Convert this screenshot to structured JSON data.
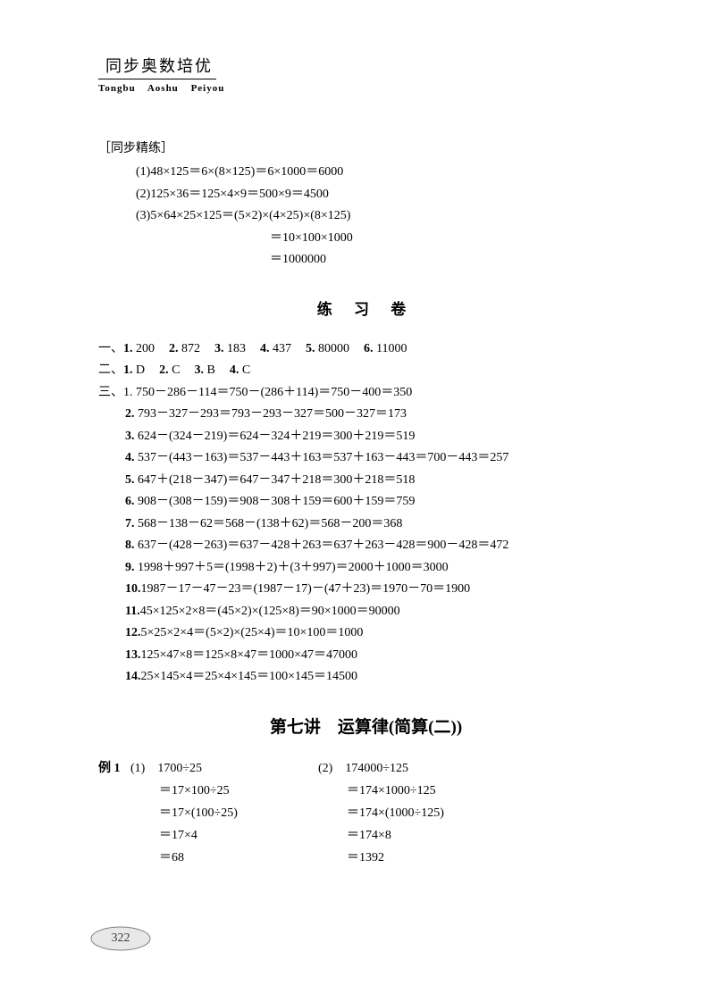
{
  "header": {
    "cn": "同步奥数培优",
    "pinyin": [
      "Tongbu",
      "Aoshu",
      "Peiyou"
    ]
  },
  "colors": {
    "text": "#000000",
    "background": "#ffffff",
    "pagenum_stroke": "#808080",
    "pagenum_fill": "#e8e8e8"
  },
  "section1": {
    "label": "［同步精练］",
    "lines": [
      "(1)48×125＝6×(8×125)＝6×1000＝6000",
      "(2)125×36＝125×4×9＝500×9＝4500",
      "(3)5×64×25×125＝(5×2)×(4×25)×(8×125)"
    ],
    "sub_lines": [
      "＝10×100×1000",
      "＝1000000"
    ]
  },
  "practice": {
    "title": "练 习 卷",
    "q1": {
      "prefix": "一、",
      "items": [
        {
          "n": "1.",
          "v": "200"
        },
        {
          "n": "2.",
          "v": "872"
        },
        {
          "n": "3.",
          "v": "183"
        },
        {
          "n": "4.",
          "v": "437"
        },
        {
          "n": "5.",
          "v": "80000"
        },
        {
          "n": "6.",
          "v": "11000"
        }
      ]
    },
    "q2": {
      "prefix": "二、",
      "items": [
        {
          "n": "1.",
          "v": "D"
        },
        {
          "n": "2.",
          "v": "C"
        },
        {
          "n": "3.",
          "v": "B"
        },
        {
          "n": "4.",
          "v": "C"
        }
      ]
    },
    "q3": {
      "prefix": "三、",
      "rows": [
        {
          "n": "1.",
          "t": "750－286－114＝750－(286＋114)＝750－400＝350"
        },
        {
          "n": "2.",
          "t": "793－327－293＝793－293－327＝500－327＝173"
        },
        {
          "n": "3.",
          "t": "624－(324－219)＝624－324＋219＝300＋219＝519"
        },
        {
          "n": "4.",
          "t": "537－(443－163)＝537－443＋163＝537＋163－443＝700－443＝257"
        },
        {
          "n": "5.",
          "t": "647＋(218－347)＝647－347＋218＝300＋218＝518"
        },
        {
          "n": "6.",
          "t": "908－(308－159)＝908－308＋159＝600＋159＝759"
        },
        {
          "n": "7.",
          "t": "568－138－62＝568－(138＋62)＝568－200＝368"
        },
        {
          "n": "8.",
          "t": "637－(428－263)＝637－428＋263＝637＋263－428＝900－428＝472"
        },
        {
          "n": "9.",
          "t": "1998＋997＋5＝(1998＋2)＋(3＋997)＝2000＋1000＝3000"
        },
        {
          "n": "10.",
          "t": "1987－17－47－23＝(1987－17)－(47＋23)＝1970－70＝1900"
        },
        {
          "n": "11.",
          "t": "45×125×2×8＝(45×2)×(125×8)＝90×1000＝90000"
        },
        {
          "n": "12.",
          "t": "5×25×2×4＝(5×2)×(25×4)＝10×100＝1000"
        },
        {
          "n": "13.",
          "t": "125×47×8＝125×8×47＝1000×47＝47000"
        },
        {
          "n": "14.",
          "t": "25×145×4＝25×4×145＝100×145＝14500"
        }
      ]
    }
  },
  "lecture": {
    "title": "第七讲　运算律(简算(二))",
    "ex_label": "例 1",
    "col1": {
      "head": "(1)　1700÷25",
      "lines": [
        "＝17×100÷25",
        "＝17×(100÷25)",
        "＝17×4",
        "＝68"
      ]
    },
    "col2": {
      "head": "(2)　174000÷125",
      "lines": [
        "＝174×1000÷125",
        "＝174×(1000÷125)",
        "＝174×8",
        "＝1392"
      ]
    }
  },
  "page_number": "322"
}
